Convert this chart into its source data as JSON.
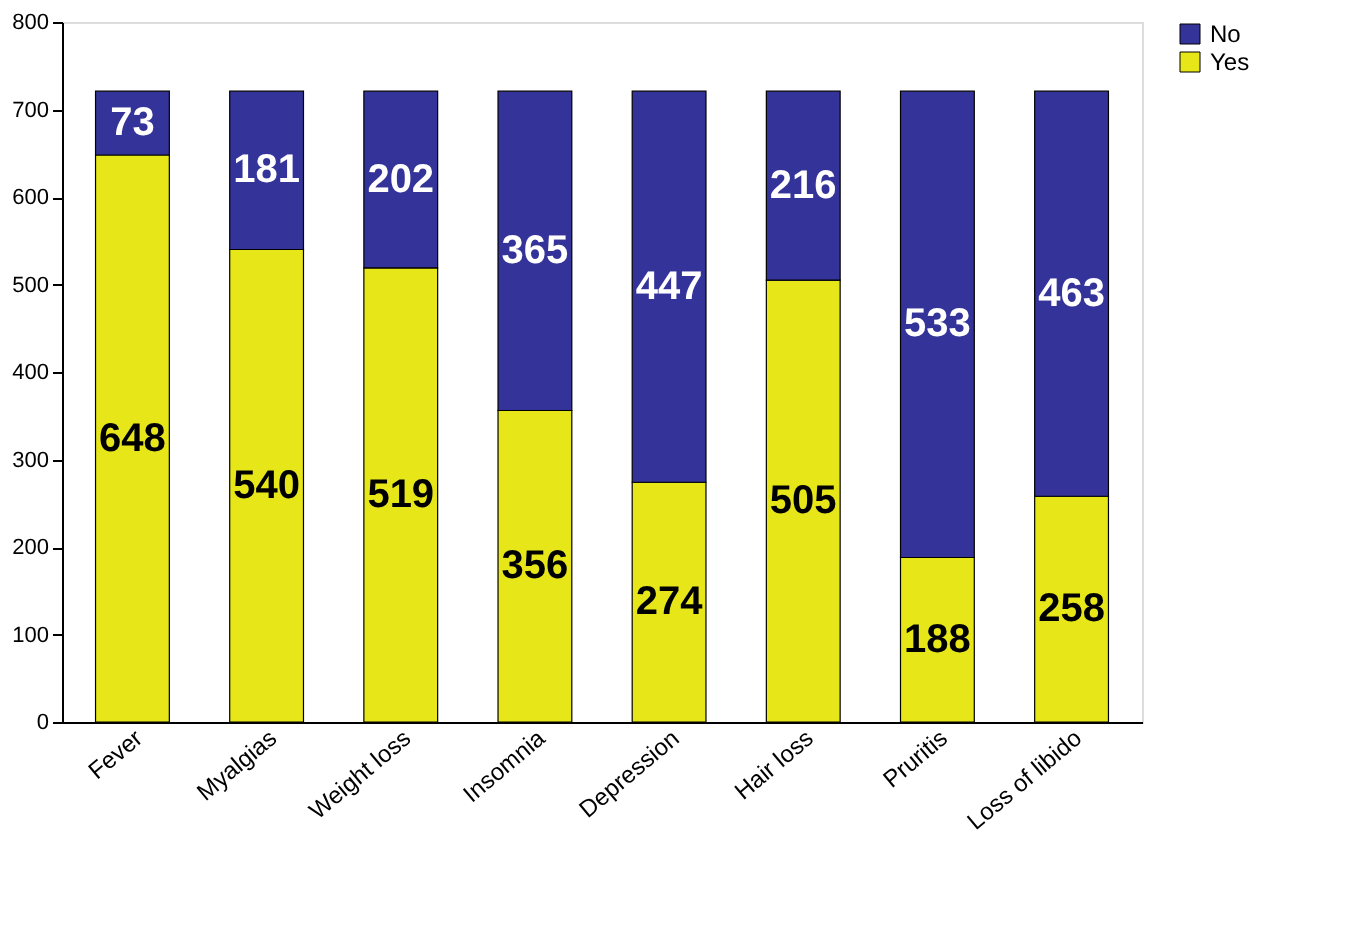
{
  "chart_data": {
    "type": "bar",
    "stacked": true,
    "categories": [
      "Fever",
      "Myalgias",
      "Weight loss",
      "Insomnia",
      "Depression",
      "Hair loss",
      "Pruritis",
      "Loss of libido"
    ],
    "series": [
      {
        "name": "Yes",
        "color": "#e6e619",
        "values": [
          648,
          540,
          519,
          356,
          274,
          505,
          188,
          258
        ]
      },
      {
        "name": "No",
        "color": "#333399",
        "values": [
          73,
          181,
          202,
          365,
          447,
          216,
          533,
          463
        ]
      }
    ],
    "ylim": [
      0,
      800
    ],
    "yticks": [
      0,
      100,
      200,
      300,
      400,
      500,
      600,
      700,
      800
    ],
    "data_labels": true,
    "grid": false,
    "legend": "right"
  }
}
